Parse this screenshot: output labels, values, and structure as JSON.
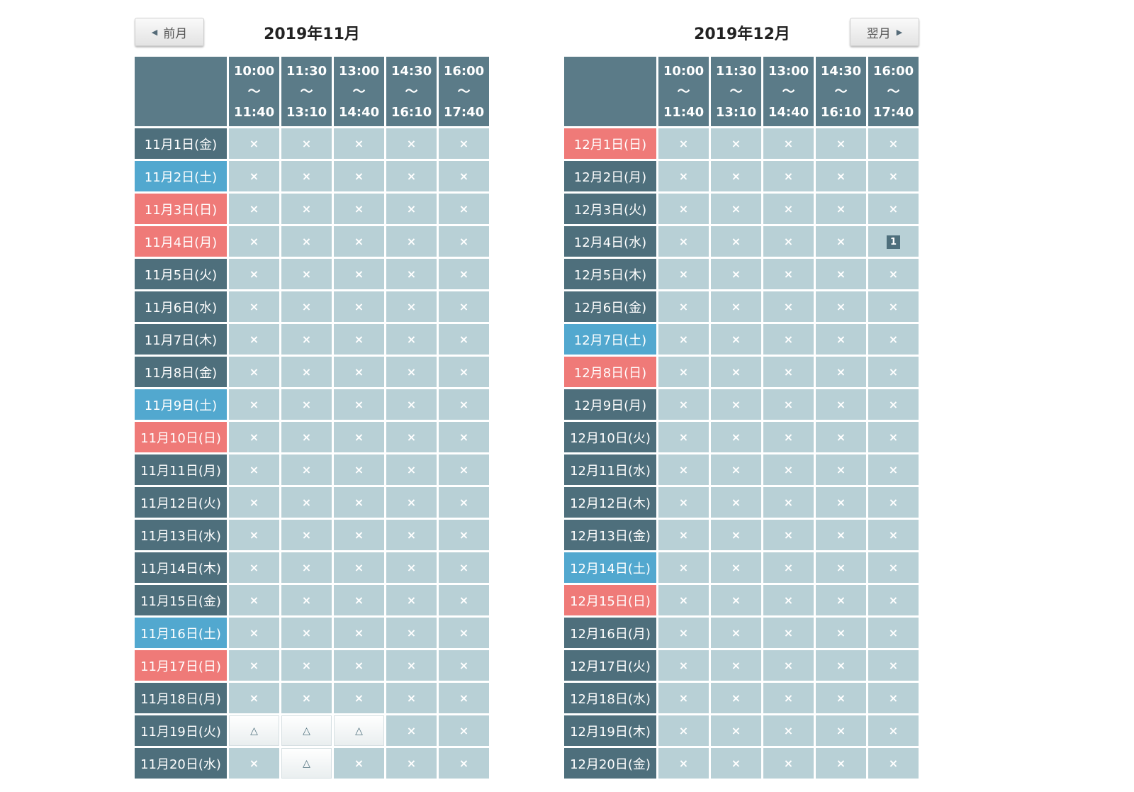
{
  "nav": {
    "prev_label": "前月",
    "next_label": "翌月"
  },
  "slots": [
    {
      "start": "10:00",
      "sep": "～",
      "end": "11:40"
    },
    {
      "start": "11:30",
      "sep": "～",
      "end": "13:10"
    },
    {
      "start": "13:00",
      "sep": "～",
      "end": "14:40"
    },
    {
      "start": "14:30",
      "sep": "～",
      "end": "16:10"
    },
    {
      "start": "16:00",
      "sep": "～",
      "end": "17:40"
    }
  ],
  "months": [
    {
      "title": "2019年11月",
      "rows": [
        {
          "date": "11月1日(金)",
          "type": "weekday",
          "cells": [
            "×",
            "×",
            "×",
            "×",
            "×"
          ]
        },
        {
          "date": "11月2日(土)",
          "type": "sat",
          "cells": [
            "×",
            "×",
            "×",
            "×",
            "×"
          ]
        },
        {
          "date": "11月3日(日)",
          "type": "sun",
          "cells": [
            "×",
            "×",
            "×",
            "×",
            "×"
          ]
        },
        {
          "date": "11月4日(月)",
          "type": "sun",
          "cells": [
            "×",
            "×",
            "×",
            "×",
            "×"
          ]
        },
        {
          "date": "11月5日(火)",
          "type": "weekday",
          "cells": [
            "×",
            "×",
            "×",
            "×",
            "×"
          ]
        },
        {
          "date": "11月6日(水)",
          "type": "weekday",
          "cells": [
            "×",
            "×",
            "×",
            "×",
            "×"
          ]
        },
        {
          "date": "11月7日(木)",
          "type": "weekday",
          "cells": [
            "×",
            "×",
            "×",
            "×",
            "×"
          ]
        },
        {
          "date": "11月8日(金)",
          "type": "weekday",
          "cells": [
            "×",
            "×",
            "×",
            "×",
            "×"
          ]
        },
        {
          "date": "11月9日(土)",
          "type": "sat",
          "cells": [
            "×",
            "×",
            "×",
            "×",
            "×"
          ]
        },
        {
          "date": "11月10日(日)",
          "type": "sun",
          "cells": [
            "×",
            "×",
            "×",
            "×",
            "×"
          ]
        },
        {
          "date": "11月11日(月)",
          "type": "weekday",
          "cells": [
            "×",
            "×",
            "×",
            "×",
            "×"
          ]
        },
        {
          "date": "11月12日(火)",
          "type": "weekday",
          "cells": [
            "×",
            "×",
            "×",
            "×",
            "×"
          ]
        },
        {
          "date": "11月13日(水)",
          "type": "weekday",
          "cells": [
            "×",
            "×",
            "×",
            "×",
            "×"
          ]
        },
        {
          "date": "11月14日(木)",
          "type": "weekday",
          "cells": [
            "×",
            "×",
            "×",
            "×",
            "×"
          ]
        },
        {
          "date": "11月15日(金)",
          "type": "weekday",
          "cells": [
            "×",
            "×",
            "×",
            "×",
            "×"
          ]
        },
        {
          "date": "11月16日(土)",
          "type": "sat",
          "cells": [
            "×",
            "×",
            "×",
            "×",
            "×"
          ]
        },
        {
          "date": "11月17日(日)",
          "type": "sun",
          "cells": [
            "×",
            "×",
            "×",
            "×",
            "×"
          ]
        },
        {
          "date": "11月18日(月)",
          "type": "weekday",
          "cells": [
            "×",
            "×",
            "×",
            "×",
            "×"
          ]
        },
        {
          "date": "11月19日(火)",
          "type": "weekday",
          "cells": [
            "△",
            "△",
            "△",
            "×",
            "×"
          ]
        },
        {
          "date": "11月20日(水)",
          "type": "weekday",
          "cells": [
            "×",
            "△",
            "×",
            "×",
            "×"
          ]
        }
      ]
    },
    {
      "title": "2019年12月",
      "rows": [
        {
          "date": "12月1日(日)",
          "type": "sun",
          "cells": [
            "×",
            "×",
            "×",
            "×",
            "×"
          ]
        },
        {
          "date": "12月2日(月)",
          "type": "weekday",
          "cells": [
            "×",
            "×",
            "×",
            "×",
            "×"
          ]
        },
        {
          "date": "12月3日(火)",
          "type": "weekday",
          "cells": [
            "×",
            "×",
            "×",
            "×",
            "×"
          ]
        },
        {
          "date": "12月4日(水)",
          "type": "weekday",
          "cells": [
            "×",
            "×",
            "×",
            "×",
            "1"
          ]
        },
        {
          "date": "12月5日(木)",
          "type": "weekday",
          "cells": [
            "×",
            "×",
            "×",
            "×",
            "×"
          ]
        },
        {
          "date": "12月6日(金)",
          "type": "weekday",
          "cells": [
            "×",
            "×",
            "×",
            "×",
            "×"
          ]
        },
        {
          "date": "12月7日(土)",
          "type": "sat",
          "cells": [
            "×",
            "×",
            "×",
            "×",
            "×"
          ]
        },
        {
          "date": "12月8日(日)",
          "type": "sun",
          "cells": [
            "×",
            "×",
            "×",
            "×",
            "×"
          ]
        },
        {
          "date": "12月9日(月)",
          "type": "weekday",
          "cells": [
            "×",
            "×",
            "×",
            "×",
            "×"
          ]
        },
        {
          "date": "12月10日(火)",
          "type": "weekday",
          "cells": [
            "×",
            "×",
            "×",
            "×",
            "×"
          ]
        },
        {
          "date": "12月11日(水)",
          "type": "weekday",
          "cells": [
            "×",
            "×",
            "×",
            "×",
            "×"
          ]
        },
        {
          "date": "12月12日(木)",
          "type": "weekday",
          "cells": [
            "×",
            "×",
            "×",
            "×",
            "×"
          ]
        },
        {
          "date": "12月13日(金)",
          "type": "weekday",
          "cells": [
            "×",
            "×",
            "×",
            "×",
            "×"
          ]
        },
        {
          "date": "12月14日(土)",
          "type": "sat",
          "cells": [
            "×",
            "×",
            "×",
            "×",
            "×"
          ]
        },
        {
          "date": "12月15日(日)",
          "type": "sun",
          "cells": [
            "×",
            "×",
            "×",
            "×",
            "×"
          ]
        },
        {
          "date": "12月16日(月)",
          "type": "weekday",
          "cells": [
            "×",
            "×",
            "×",
            "×",
            "×"
          ]
        },
        {
          "date": "12月17日(火)",
          "type": "weekday",
          "cells": [
            "×",
            "×",
            "×",
            "×",
            "×"
          ]
        },
        {
          "date": "12月18日(水)",
          "type": "weekday",
          "cells": [
            "×",
            "×",
            "×",
            "×",
            "×"
          ]
        },
        {
          "date": "12月19日(木)",
          "type": "weekday",
          "cells": [
            "×",
            "×",
            "×",
            "×",
            "×"
          ]
        },
        {
          "date": "12月20日(金)",
          "type": "weekday",
          "cells": [
            "×",
            "×",
            "×",
            "×",
            "×"
          ]
        }
      ]
    }
  ],
  "colors": {
    "header": "#5b7b88",
    "weekday": "#4e6f7c",
    "saturday": "#52a8cf",
    "sunday": "#ef7a78",
    "cell": "#b8d0d6"
  }
}
